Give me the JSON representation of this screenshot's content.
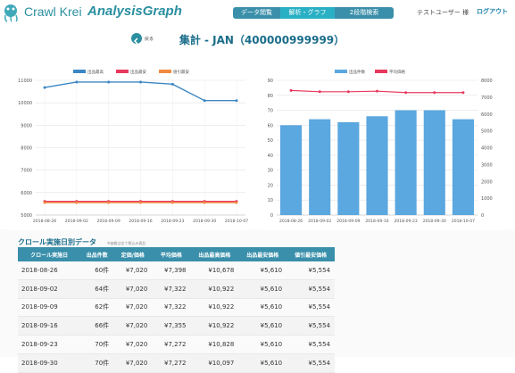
{
  "header": {
    "brand_main": "Crawl Krei",
    "brand_sub": "AnalysisGraph",
    "nav": [
      "データ閲覧",
      "解析・グラフ",
      "2段階検索"
    ],
    "user": "テストユーザー 様",
    "logout": "ログアウト"
  },
  "page": {
    "back": "戻る",
    "title": "集計 - JAN（400000999999）"
  },
  "chart_data": [
    {
      "type": "line",
      "x": [
        "2018-08-26",
        "2018-09-02",
        "2018-09-09",
        "2018-09-16",
        "2018-09-23",
        "2018-09-30",
        "2018-10-07"
      ],
      "series": [
        {
          "name": "出品最高",
          "values": [
            10678,
            10922,
            10922,
            10922,
            10828,
            10097,
            10097
          ],
          "color": "#3b87c4"
        },
        {
          "name": "出品最安",
          "values": [
            5610,
            5610,
            5610,
            5610,
            5610,
            5610,
            5610
          ],
          "color": "#e8385e"
        },
        {
          "name": "値引最安",
          "values": [
            5554,
            5554,
            5554,
            5554,
            5554,
            5554,
            5554
          ],
          "color": "#f08a3e"
        }
      ],
      "yticks": [
        "5000",
        "6000",
        "7000",
        "8000",
        "9000",
        "10000",
        "11000"
      ],
      "ylim": [
        5000,
        11000
      ],
      "legend": "top",
      "grid": true
    },
    {
      "type": "bar",
      "x": [
        "2018-08-26",
        "2018-09-02",
        "2018-09-09",
        "2018-09-16",
        "2018-09-23",
        "2018-09-30",
        "2018-10-07"
      ],
      "series": [
        {
          "name": "出品件数",
          "values": [
            60,
            64,
            62,
            66,
            70,
            70,
            64
          ],
          "color": "#5ba7e0",
          "axis": "left"
        },
        {
          "name": "平均価格",
          "values": [
            7398,
            7322,
            7322,
            7355,
            7272,
            7272,
            7272
          ],
          "color": "#e8385e",
          "axis": "right"
        }
      ],
      "yticks_left": [
        "0",
        "10",
        "20",
        "30",
        "40",
        "50",
        "60",
        "70",
        "80",
        "90"
      ],
      "yticks_right": [
        "0",
        "1000",
        "2000",
        "3000",
        "4000",
        "5000",
        "6000",
        "7000",
        "8000"
      ],
      "ylim_left": [
        0,
        90
      ],
      "ylim_right": [
        0,
        8000
      ],
      "legend": "top",
      "grid": true
    }
  ],
  "table": {
    "title": "クロール実施日別データ",
    "note": "※価格は全て税込み表記",
    "headers": [
      "クロール実施日",
      "出品件数",
      "定価/価格",
      "平均価格",
      "出品最高価格",
      "出品最安価格",
      "値引最安価格"
    ],
    "rows": [
      [
        "2018-08-26",
        "60件",
        "¥7,020",
        "¥7,398",
        "¥10,678",
        "¥5,610",
        "¥5,554"
      ],
      [
        "2018-09-02",
        "64件",
        "¥7,020",
        "¥7,322",
        "¥10,922",
        "¥5,610",
        "¥5,554"
      ],
      [
        "2018-09-09",
        "62件",
        "¥7,020",
        "¥7,322",
        "¥10,922",
        "¥5,610",
        "¥5,554"
      ],
      [
        "2018-09-16",
        "66件",
        "¥7,020",
        "¥7,355",
        "¥10,922",
        "¥5,610",
        "¥5,554"
      ],
      [
        "2018-09-23",
        "70件",
        "¥7,020",
        "¥7,272",
        "¥10,828",
        "¥5,610",
        "¥5,554"
      ],
      [
        "2018-09-30",
        "70件",
        "¥7,020",
        "¥7,272",
        "¥10,097",
        "¥5,610",
        "¥5,554"
      ]
    ]
  },
  "colors": {
    "accent": "#2a8fa0",
    "nav": "#3a8faa",
    "nav_active": "#2ab0c4",
    "title": "#1a6d8a"
  }
}
